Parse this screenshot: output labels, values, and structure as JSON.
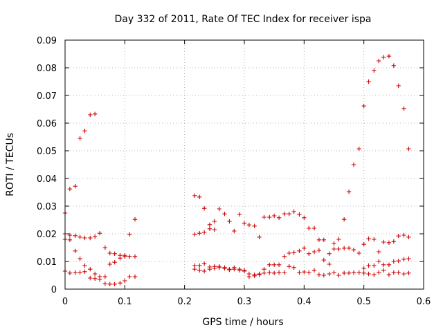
{
  "chart_data": {
    "type": "scatter",
    "title": "Day 332 of 2011, Rate Of TEC Index for receiver ispa",
    "xlabel": "GPS time / hours",
    "ylabel": "ROTI / TECUs",
    "xlim": [
      0,
      0.6
    ],
    "ylim": [
      0,
      0.09
    ],
    "xticks": [
      0,
      0.1,
      0.2,
      0.3,
      0.4,
      0.5,
      0.6
    ],
    "xtick_labels": [
      "0",
      "0.1",
      "0.2",
      "0.3",
      "0.4",
      "0.5",
      "0.6"
    ],
    "yticks": [
      0,
      0.01,
      0.02,
      0.03,
      0.04,
      0.05,
      0.06,
      0.07,
      0.08,
      0.09
    ],
    "ytick_labels": [
      "0",
      "0.01",
      "0.02",
      "0.03",
      "0.04",
      "0.05",
      "0.06",
      "0.07",
      "0.08",
      "0.09"
    ],
    "grid": true,
    "marker": "+",
    "marker_color": "#cc0000",
    "points": [
      [
        0.0,
        0.0275
      ],
      [
        0.008,
        0.0362
      ],
      [
        0.017,
        0.0372
      ],
      [
        0.025,
        0.0545
      ],
      [
        0.033,
        0.0572
      ],
      [
        0.042,
        0.063
      ],
      [
        0.05,
        0.0633
      ],
      [
        0.0,
        0.02
      ],
      [
        0.008,
        0.0195
      ],
      [
        0.017,
        0.0193
      ],
      [
        0.025,
        0.0188
      ],
      [
        0.033,
        0.0185
      ],
      [
        0.042,
        0.0185
      ],
      [
        0.05,
        0.019
      ],
      [
        0.058,
        0.0202
      ],
      [
        0.067,
        0.015
      ],
      [
        0.075,
        0.013
      ],
      [
        0.083,
        0.0128
      ],
      [
        0.092,
        0.0122
      ],
      [
        0.1,
        0.0122
      ],
      [
        0.108,
        0.0198
      ],
      [
        0.117,
        0.0252
      ],
      [
        0.0,
        0.018
      ],
      [
        0.008,
        0.0178
      ],
      [
        0.017,
        0.0138
      ],
      [
        0.025,
        0.011
      ],
      [
        0.033,
        0.0085
      ],
      [
        0.042,
        0.0072
      ],
      [
        0.05,
        0.0055
      ],
      [
        0.058,
        0.0045
      ],
      [
        0.067,
        0.0045
      ],
      [
        0.075,
        0.009
      ],
      [
        0.083,
        0.0097
      ],
      [
        0.092,
        0.0112
      ],
      [
        0.1,
        0.0118
      ],
      [
        0.108,
        0.0118
      ],
      [
        0.117,
        0.0118
      ],
      [
        0.0,
        0.0065
      ],
      [
        0.008,
        0.0058
      ],
      [
        0.017,
        0.006
      ],
      [
        0.025,
        0.006
      ],
      [
        0.033,
        0.0063
      ],
      [
        0.042,
        0.004
      ],
      [
        0.05,
        0.0038
      ],
      [
        0.058,
        0.0035
      ],
      [
        0.067,
        0.002
      ],
      [
        0.075,
        0.0018
      ],
      [
        0.083,
        0.0018
      ],
      [
        0.092,
        0.0022
      ],
      [
        0.1,
        0.003
      ],
      [
        0.108,
        0.0045
      ],
      [
        0.117,
        0.0045
      ],
      [
        0.217,
        0.0338
      ],
      [
        0.225,
        0.0333
      ],
      [
        0.233,
        0.0292
      ],
      [
        0.242,
        0.0233
      ],
      [
        0.25,
        0.0245
      ],
      [
        0.258,
        0.029
      ],
      [
        0.267,
        0.0272
      ],
      [
        0.275,
        0.0245
      ],
      [
        0.283,
        0.021
      ],
      [
        0.292,
        0.027
      ],
      [
        0.3,
        0.0238
      ],
      [
        0.308,
        0.0232
      ],
      [
        0.317,
        0.0228
      ],
      [
        0.325,
        0.0188
      ],
      [
        0.333,
        0.026
      ],
      [
        0.342,
        0.026
      ],
      [
        0.35,
        0.0265
      ],
      [
        0.358,
        0.0258
      ],
      [
        0.367,
        0.0272
      ],
      [
        0.375,
        0.0272
      ],
      [
        0.383,
        0.028
      ],
      [
        0.392,
        0.027
      ],
      [
        0.4,
        0.0258
      ],
      [
        0.408,
        0.022
      ],
      [
        0.417,
        0.022
      ],
      [
        0.425,
        0.0178
      ],
      [
        0.433,
        0.0178
      ],
      [
        0.217,
        0.0198
      ],
      [
        0.225,
        0.0202
      ],
      [
        0.233,
        0.0205
      ],
      [
        0.242,
        0.0218
      ],
      [
        0.25,
        0.0215
      ],
      [
        0.217,
        0.0085
      ],
      [
        0.225,
        0.0085
      ],
      [
        0.233,
        0.0092
      ],
      [
        0.242,
        0.008
      ],
      [
        0.25,
        0.0082
      ],
      [
        0.258,
        0.0082
      ],
      [
        0.267,
        0.0078
      ],
      [
        0.275,
        0.0072
      ],
      [
        0.283,
        0.0072
      ],
      [
        0.292,
        0.0068
      ],
      [
        0.3,
        0.0068
      ],
      [
        0.308,
        0.0045
      ],
      [
        0.317,
        0.0048
      ],
      [
        0.325,
        0.0055
      ],
      [
        0.333,
        0.0072
      ],
      [
        0.342,
        0.0088
      ],
      [
        0.35,
        0.0088
      ],
      [
        0.358,
        0.0088
      ],
      [
        0.367,
        0.0118
      ],
      [
        0.375,
        0.013
      ],
      [
        0.383,
        0.0132
      ],
      [
        0.392,
        0.0138
      ],
      [
        0.4,
        0.0148
      ],
      [
        0.408,
        0.0128
      ],
      [
        0.417,
        0.0135
      ],
      [
        0.425,
        0.014
      ],
      [
        0.433,
        0.0105
      ],
      [
        0.442,
        0.009
      ],
      [
        0.45,
        0.0145
      ],
      [
        0.458,
        0.0145
      ],
      [
        0.467,
        0.0148
      ],
      [
        0.475,
        0.0148
      ],
      [
        0.483,
        0.0142
      ],
      [
        0.492,
        0.013
      ],
      [
        0.217,
        0.0072
      ],
      [
        0.225,
        0.0068
      ],
      [
        0.233,
        0.0065
      ],
      [
        0.242,
        0.0072
      ],
      [
        0.25,
        0.0075
      ],
      [
        0.258,
        0.0078
      ],
      [
        0.267,
        0.0075
      ],
      [
        0.275,
        0.007
      ],
      [
        0.283,
        0.0078
      ],
      [
        0.292,
        0.0072
      ],
      [
        0.3,
        0.0065
      ],
      [
        0.308,
        0.0055
      ],
      [
        0.317,
        0.0052
      ],
      [
        0.325,
        0.0052
      ],
      [
        0.333,
        0.0058
      ],
      [
        0.342,
        0.006
      ],
      [
        0.35,
        0.0058
      ],
      [
        0.358,
        0.006
      ],
      [
        0.367,
        0.006
      ],
      [
        0.375,
        0.0082
      ],
      [
        0.383,
        0.0078
      ],
      [
        0.392,
        0.006
      ],
      [
        0.4,
        0.0062
      ],
      [
        0.408,
        0.006
      ],
      [
        0.417,
        0.0068
      ],
      [
        0.425,
        0.0052
      ],
      [
        0.433,
        0.005
      ],
      [
        0.442,
        0.0055
      ],
      [
        0.45,
        0.006
      ],
      [
        0.458,
        0.005
      ],
      [
        0.467,
        0.0058
      ],
      [
        0.475,
        0.0058
      ],
      [
        0.483,
        0.006
      ],
      [
        0.492,
        0.006
      ],
      [
        0.442,
        0.0128
      ],
      [
        0.45,
        0.0165
      ],
      [
        0.458,
        0.018
      ],
      [
        0.467,
        0.0252
      ],
      [
        0.475,
        0.0352
      ],
      [
        0.483,
        0.045
      ],
      [
        0.492,
        0.0507
      ],
      [
        0.5,
        0.0662
      ],
      [
        0.508,
        0.075
      ],
      [
        0.517,
        0.079
      ],
      [
        0.525,
        0.0825
      ],
      [
        0.533,
        0.0838
      ],
      [
        0.542,
        0.0842
      ],
      [
        0.55,
        0.0808
      ],
      [
        0.558,
        0.0735
      ],
      [
        0.567,
        0.0653
      ],
      [
        0.575,
        0.0507
      ],
      [
        0.5,
        0.0162
      ],
      [
        0.508,
        0.0182
      ],
      [
        0.517,
        0.018
      ],
      [
        0.525,
        0.0135
      ],
      [
        0.533,
        0.017
      ],
      [
        0.542,
        0.0168
      ],
      [
        0.55,
        0.0172
      ],
      [
        0.558,
        0.0192
      ],
      [
        0.567,
        0.0195
      ],
      [
        0.575,
        0.0188
      ],
      [
        0.5,
        0.0075
      ],
      [
        0.508,
        0.0085
      ],
      [
        0.517,
        0.0085
      ],
      [
        0.525,
        0.01
      ],
      [
        0.533,
        0.0088
      ],
      [
        0.542,
        0.0088
      ],
      [
        0.55,
        0.01
      ],
      [
        0.558,
        0.0102
      ],
      [
        0.567,
        0.0108
      ],
      [
        0.575,
        0.011
      ],
      [
        0.5,
        0.0058
      ],
      [
        0.508,
        0.0055
      ],
      [
        0.517,
        0.0052
      ],
      [
        0.525,
        0.006
      ],
      [
        0.533,
        0.0068
      ],
      [
        0.542,
        0.0052
      ],
      [
        0.55,
        0.006
      ],
      [
        0.558,
        0.006
      ],
      [
        0.567,
        0.0055
      ],
      [
        0.575,
        0.0058
      ]
    ]
  }
}
